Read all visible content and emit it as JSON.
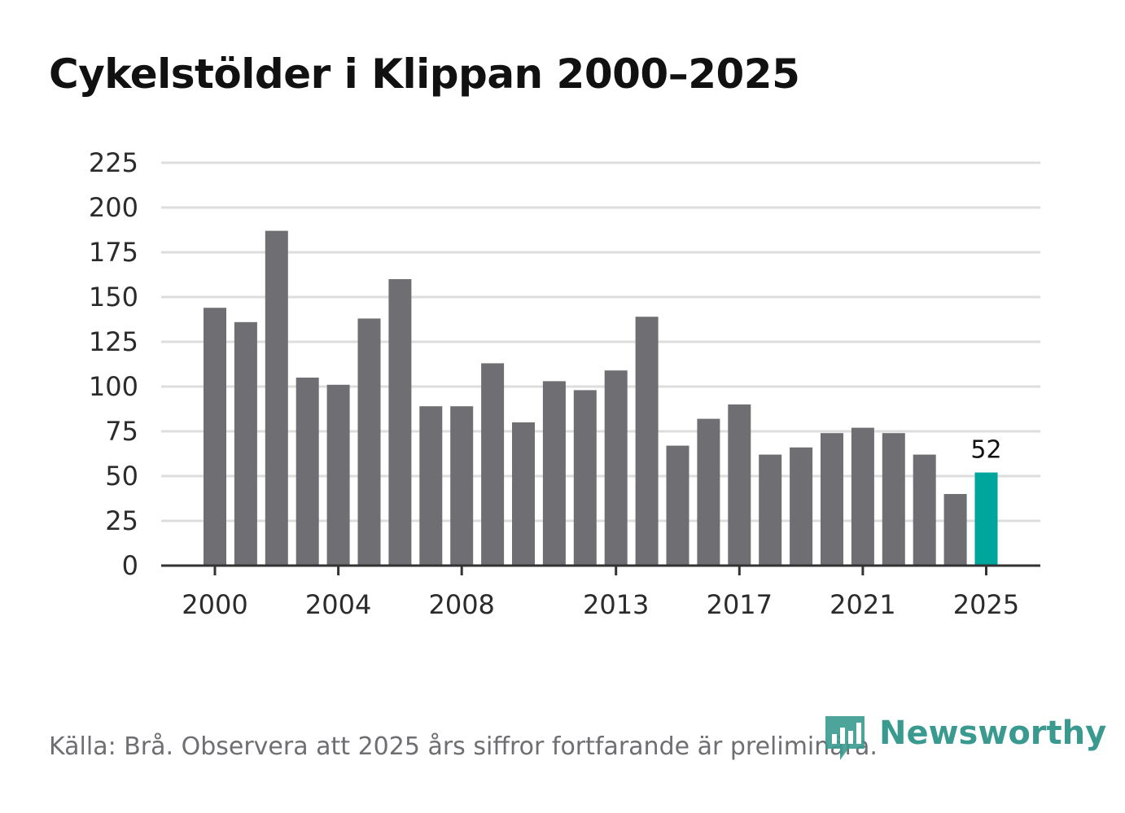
{
  "chart_data": {
    "type": "bar",
    "title": "Cykelstölder i Klippan 2000–2025",
    "xlabel": "",
    "ylabel": "",
    "ylim": [
      0,
      225
    ],
    "yticks": [
      "0",
      "25",
      "50",
      "75",
      "100",
      "125",
      "150",
      "175",
      "200",
      "225"
    ],
    "xticks": [
      "2000",
      "2004",
      "2008",
      "2013",
      "2017",
      "2021",
      "2025"
    ],
    "categories": [
      "2000",
      "2001",
      "2002",
      "2003",
      "2004",
      "2005",
      "2006",
      "2007",
      "2008",
      "2009",
      "2010",
      "2011",
      "2012",
      "2013",
      "2014",
      "2015",
      "2016",
      "2017",
      "2018",
      "2019",
      "2020",
      "2021",
      "2022",
      "2023",
      "2024",
      "2025"
    ],
    "values": [
      144,
      136,
      187,
      105,
      101,
      138,
      160,
      89,
      89,
      113,
      80,
      103,
      98,
      109,
      139,
      67,
      82,
      90,
      62,
      66,
      74,
      77,
      74,
      62,
      40,
      52
    ],
    "highlight_category": "2025",
    "data_label": "52",
    "colors": {
      "bar": "#6f6e73",
      "highlight": "#00a59b",
      "grid": "#dddddd",
      "axis": "#333333",
      "tick_text": "#2b2b2b"
    }
  },
  "footer": {
    "source": "Källa: Brå. Observera att 2025 års siffror fortfarande är preliminära."
  },
  "brand": {
    "name": "Newsworthy",
    "color": "#3a9a90"
  }
}
